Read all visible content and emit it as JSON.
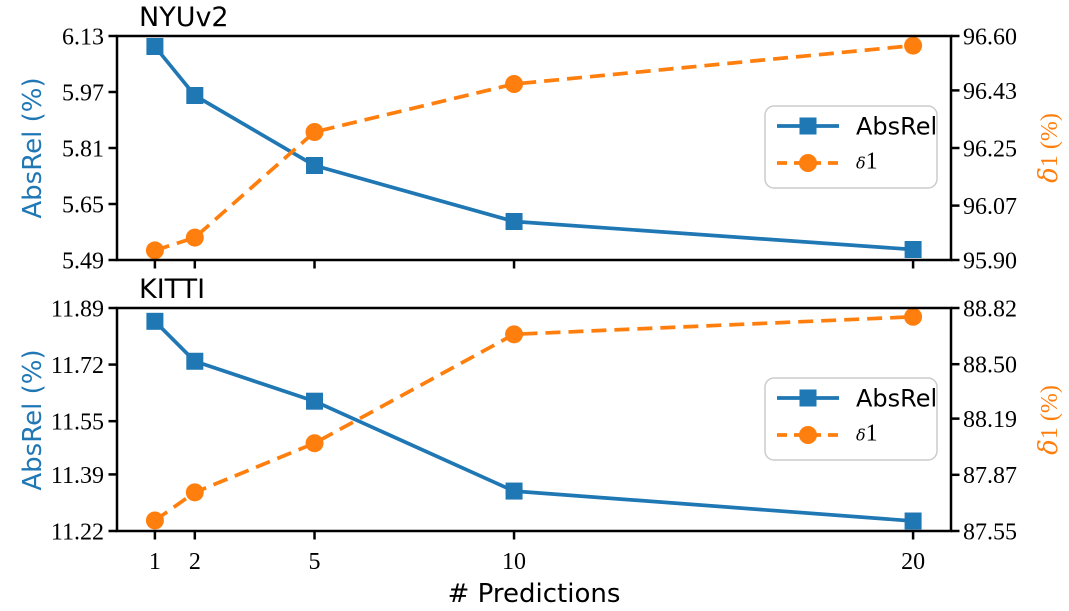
{
  "figure": {
    "background": "#ffffff",
    "xlabel": "# Predictions",
    "text_color": "#000000"
  },
  "chart_data": [
    {
      "type": "line",
      "title": "NYUv2",
      "x": [
        1,
        2,
        5,
        10,
        20
      ],
      "xlim": [
        0.05,
        20.95
      ],
      "x_tick_values": [
        1,
        2,
        5,
        10,
        20
      ],
      "x_tick_labels": [
        "1",
        "2",
        "5",
        "10",
        "20"
      ],
      "show_x_tick_labels": false,
      "grid": false,
      "left_axis": {
        "label": "AbsRel (%)",
        "color": "#1f77b4",
        "lim": [
          5.49,
          6.13
        ],
        "ticks": [
          "6.13",
          "5.97",
          "5.81",
          "5.65",
          "5.49"
        ]
      },
      "right_axis": {
        "label": "δ1 (%)",
        "color": "#ff7f0e",
        "lim": [
          95.9,
          96.6
        ],
        "ticks": [
          "96.60",
          "96.43",
          "96.25",
          "96.07",
          "95.90"
        ]
      },
      "series": [
        {
          "name": "AbsRel",
          "axis": "left",
          "color": "#1f77b4",
          "linestyle": "solid",
          "marker": "square",
          "values": [
            6.1,
            5.96,
            5.76,
            5.6,
            5.52
          ]
        },
        {
          "name": "δ1",
          "axis": "right",
          "color": "#ff7f0e",
          "linestyle": "dashed",
          "marker": "circle",
          "values": [
            95.93,
            95.97,
            96.3,
            96.45,
            96.57
          ]
        }
      ],
      "legend": {
        "position": "center right",
        "labels": [
          "AbsRel",
          "δ1"
        ]
      }
    },
    {
      "type": "line",
      "title": "KITTI",
      "x": [
        1,
        2,
        5,
        10,
        20
      ],
      "xlim": [
        0.05,
        20.95
      ],
      "x_tick_values": [
        1,
        2,
        5,
        10,
        20
      ],
      "x_tick_labels": [
        "1",
        "2",
        "5",
        "10",
        "20"
      ],
      "show_x_tick_labels": true,
      "grid": false,
      "left_axis": {
        "label": "AbsRel (%)",
        "color": "#1f77b4",
        "lim": [
          11.22,
          11.89
        ],
        "ticks": [
          "11.89",
          "11.72",
          "11.55",
          "11.39",
          "11.22"
        ]
      },
      "right_axis": {
        "label": "δ1 (%)",
        "color": "#ff7f0e",
        "lim": [
          87.55,
          88.82
        ],
        "ticks": [
          "88.82",
          "88.50",
          "88.19",
          "87.87",
          "87.55"
        ]
      },
      "series": [
        {
          "name": "AbsRel",
          "axis": "left",
          "color": "#1f77b4",
          "linestyle": "solid",
          "marker": "square",
          "values": [
            11.85,
            11.73,
            11.61,
            11.34,
            11.25
          ]
        },
        {
          "name": "δ1",
          "axis": "right",
          "color": "#ff7f0e",
          "linestyle": "dashed",
          "marker": "circle",
          "values": [
            87.61,
            87.77,
            88.05,
            88.67,
            88.77
          ]
        }
      ],
      "legend": {
        "position": "center right",
        "labels": [
          "AbsRel",
          "δ1"
        ]
      }
    }
  ]
}
